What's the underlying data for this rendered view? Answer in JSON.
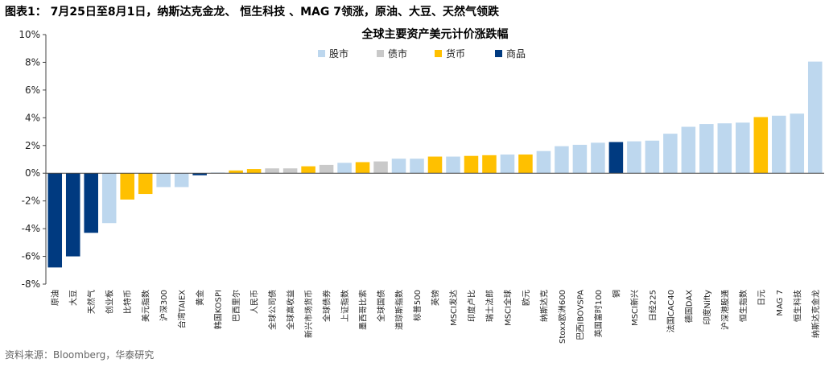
{
  "figure_title": "图表1：  7月25日至8月1日，纳斯达克金龙、 恒生科技 、MAG 7领涨，原油、大豆、天然气领跌",
  "source": "资料来源：Bloomberg，华泰研究",
  "colors": {
    "股市": "#bdd7ee",
    "债市": "#c9c9c9",
    "货币": "#ffc000",
    "商品": "#003a80"
  },
  "chart_data": {
    "type": "bar",
    "title": "全球主要资产美元计价涨跌幅",
    "xlabel": "",
    "ylabel": "",
    "ylim": [
      -8,
      10
    ],
    "yticks": [
      -8,
      -6,
      -4,
      -2,
      0,
      2,
      4,
      6,
      8,
      10
    ],
    "ytick_labels": [
      "-8%",
      "-6%",
      "-4%",
      "-2%",
      "0%",
      "2%",
      "4%",
      "6%",
      "8%",
      "10%"
    ],
    "grid": false,
    "legend_position": "top-center",
    "legend": [
      "股市",
      "债市",
      "货币",
      "商品"
    ],
    "bars": [
      {
        "label": "原油",
        "value": -6.8,
        "cat": "商品"
      },
      {
        "label": "大豆",
        "value": -6.0,
        "cat": "商品"
      },
      {
        "label": "天然气",
        "value": -4.3,
        "cat": "商品"
      },
      {
        "label": "创业板",
        "value": -3.6,
        "cat": "股市"
      },
      {
        "label": "比特币",
        "value": -1.9,
        "cat": "货币"
      },
      {
        "label": "美元指数",
        "value": -1.5,
        "cat": "货币"
      },
      {
        "label": "沪深300",
        "value": -1.0,
        "cat": "股市"
      },
      {
        "label": "台湾TAIEX",
        "value": -1.0,
        "cat": "股市"
      },
      {
        "label": "黄金",
        "value": -0.15,
        "cat": "商品"
      },
      {
        "label": "韩国KOSPI",
        "value": 0.05,
        "cat": "股市"
      },
      {
        "label": "巴西里尔",
        "value": 0.2,
        "cat": "货币"
      },
      {
        "label": "人民币",
        "value": 0.3,
        "cat": "货币"
      },
      {
        "label": "全球公司债",
        "value": 0.35,
        "cat": "债市"
      },
      {
        "label": "全球高收益",
        "value": 0.35,
        "cat": "债市"
      },
      {
        "label": "新兴市场货币",
        "value": 0.5,
        "cat": "货币"
      },
      {
        "label": "全球债券",
        "value": 0.6,
        "cat": "债市"
      },
      {
        "label": "上证指数",
        "value": 0.75,
        "cat": "股市"
      },
      {
        "label": "墨西哥比索",
        "value": 0.8,
        "cat": "货币"
      },
      {
        "label": "全球国债",
        "value": 0.85,
        "cat": "债市"
      },
      {
        "label": "道琼斯指数",
        "value": 1.05,
        "cat": "股市"
      },
      {
        "label": "标普500",
        "value": 1.05,
        "cat": "股市"
      },
      {
        "label": "英镑",
        "value": 1.2,
        "cat": "货币"
      },
      {
        "label": "MSCI发达",
        "value": 1.2,
        "cat": "股市"
      },
      {
        "label": "印度卢比",
        "value": 1.25,
        "cat": "货币"
      },
      {
        "label": "瑞士法郎",
        "value": 1.3,
        "cat": "货币"
      },
      {
        "label": "MSCI全球",
        "value": 1.35,
        "cat": "股市"
      },
      {
        "label": "欧元",
        "value": 1.35,
        "cat": "货币"
      },
      {
        "label": "纳斯达克",
        "value": 1.6,
        "cat": "股市"
      },
      {
        "label": "Stoxx欧洲600",
        "value": 1.95,
        "cat": "股市"
      },
      {
        "label": "巴西IBOVSPA",
        "value": 2.05,
        "cat": "股市"
      },
      {
        "label": "英国富时100",
        "value": 2.2,
        "cat": "股市"
      },
      {
        "label": "铜",
        "value": 2.25,
        "cat": "商品"
      },
      {
        "label": "MSCI新兴",
        "value": 2.3,
        "cat": "股市"
      },
      {
        "label": "日经225",
        "value": 2.35,
        "cat": "股市"
      },
      {
        "label": "法国CAC40",
        "value": 2.85,
        "cat": "股市"
      },
      {
        "label": "德国DAX",
        "value": 3.35,
        "cat": "股市"
      },
      {
        "label": "印度Nifty",
        "value": 3.55,
        "cat": "股市"
      },
      {
        "label": "沪深港股通",
        "value": 3.6,
        "cat": "股市"
      },
      {
        "label": "恒生指数",
        "value": 3.65,
        "cat": "股市"
      },
      {
        "label": "日元",
        "value": 4.05,
        "cat": "货币"
      },
      {
        "label": "MAG 7",
        "value": 4.15,
        "cat": "股市"
      },
      {
        "label": "恒生科技",
        "value": 4.3,
        "cat": "股市"
      },
      {
        "label": "纳斯达克金龙",
        "value": 8.05,
        "cat": "股市"
      }
    ]
  }
}
